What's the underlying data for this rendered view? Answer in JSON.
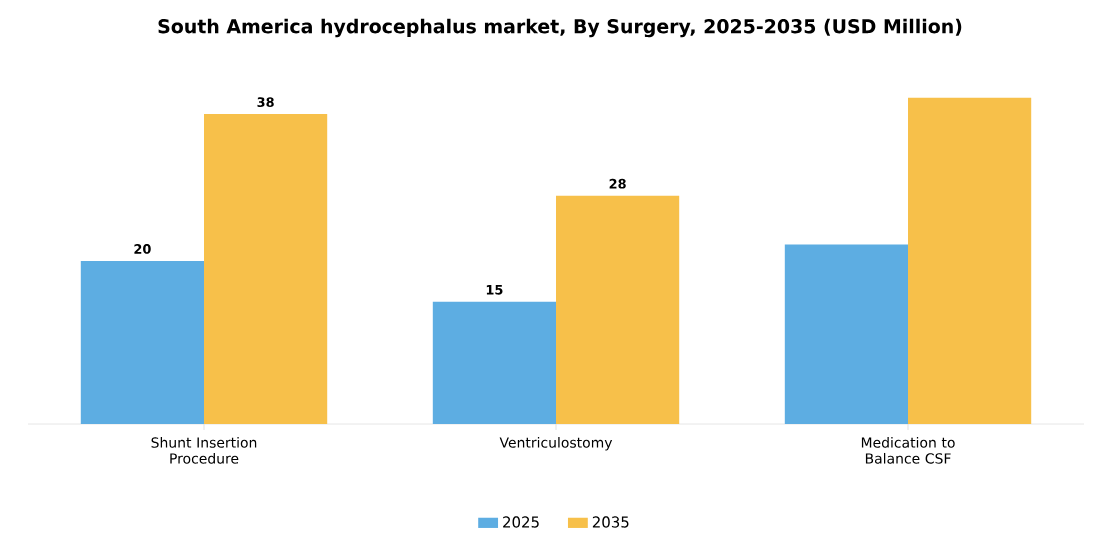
{
  "chart_data": {
    "type": "bar",
    "title": "South America hydrocephalus market, By Surgery, 2025-2035 (USD Million)",
    "categories": [
      "Shunt Insertion Procedure",
      "Ventriculostomy",
      "Medication to Balance CSF"
    ],
    "series": [
      {
        "name": "2025",
        "color": "#5dade2",
        "values": [
          20,
          15,
          22
        ],
        "value_labels": [
          "20",
          "15",
          null
        ]
      },
      {
        "name": "2035",
        "color": "#f7c04a",
        "values": [
          38,
          28,
          40
        ],
        "value_labels": [
          "38",
          "28",
          null
        ]
      }
    ],
    "legend": "bottom"
  }
}
